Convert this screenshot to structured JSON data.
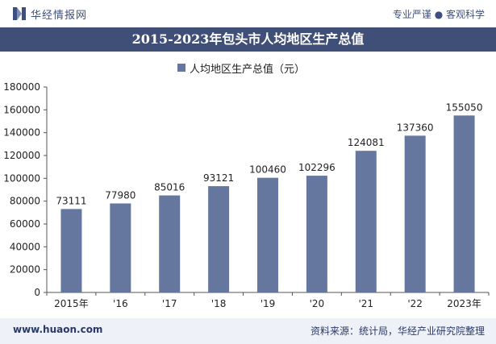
{
  "header": {
    "brand": "华经情报网",
    "tagline": "专业严谨 ● 客观科学",
    "title": "2015-2023年包头市人均地区生产总值"
  },
  "colors": {
    "bar": "#65779e",
    "title_bar": "#3f4f77"
  },
  "chart_data": {
    "type": "bar",
    "title": "2015-2023年包头市人均地区生产总值",
    "legend_position": "top",
    "categories": [
      "2015年",
      "'16",
      "'17",
      "'18",
      "'19",
      "'20",
      "'21",
      "'22",
      "2023年"
    ],
    "series": [
      {
        "name": "人均地区生产总值（元）",
        "values": [
          73111,
          77980,
          85016,
          93121,
          100460,
          102296,
          124081,
          137360,
          155050
        ]
      }
    ],
    "ylim": [
      0,
      180000
    ],
    "yticks": [
      0,
      20000,
      40000,
      60000,
      80000,
      100000,
      120000,
      140000,
      160000,
      180000
    ],
    "grid": false
  },
  "footer": {
    "site": "www.huaon.com",
    "source": "资料来源：统计局，华经产业研究院整理"
  }
}
